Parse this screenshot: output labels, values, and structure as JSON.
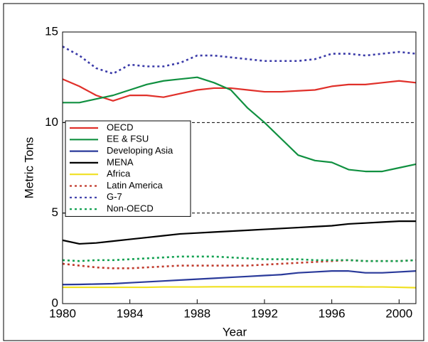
{
  "chart_data": {
    "type": "line",
    "x_label": "Year",
    "y_label": "Metric Tons",
    "x": [
      1980,
      1981,
      1982,
      1983,
      1984,
      1985,
      1986,
      1987,
      1988,
      1989,
      1990,
      1991,
      1992,
      1993,
      1994,
      1995,
      1996,
      1997,
      1998,
      1999,
      2000,
      2001
    ],
    "xlim": [
      1980,
      2001
    ],
    "xticks": [
      1980,
      1984,
      1988,
      1992,
      1996,
      2000
    ],
    "ylim": [
      0,
      15
    ],
    "yticks": [
      0,
      5,
      10,
      15
    ],
    "grid": true,
    "legend": "left",
    "series": [
      {
        "name": "OECD",
        "color": "#e0302a",
        "dashed": false,
        "values": [
          12.4,
          12.0,
          11.5,
          11.2,
          11.5,
          11.5,
          11.4,
          11.6,
          11.8,
          11.9,
          11.9,
          11.8,
          11.7,
          11.7,
          11.75,
          11.8,
          12.0,
          12.1,
          12.1,
          12.2,
          12.3,
          12.2
        ]
      },
      {
        "name": "EE & FSU",
        "color": "#109040",
        "dashed": false,
        "values": [
          11.1,
          11.1,
          11.3,
          11.5,
          11.8,
          12.1,
          12.3,
          12.4,
          12.5,
          12.2,
          11.8,
          10.8,
          10.0,
          9.1,
          8.2,
          7.9,
          7.8,
          7.4,
          7.3,
          7.3,
          7.5,
          7.7
        ]
      },
      {
        "name": "Developing Asia",
        "color": "#2a3a9a",
        "dashed": false,
        "values": [
          1.05,
          1.06,
          1.08,
          1.1,
          1.15,
          1.2,
          1.25,
          1.3,
          1.35,
          1.4,
          1.45,
          1.5,
          1.55,
          1.6,
          1.7,
          1.75,
          1.8,
          1.8,
          1.7,
          1.7,
          1.75,
          1.8
        ]
      },
      {
        "name": "MENA",
        "color": "#000000",
        "dashed": false,
        "values": [
          3.5,
          3.3,
          3.35,
          3.45,
          3.55,
          3.65,
          3.75,
          3.85,
          3.9,
          3.95,
          4.0,
          4.05,
          4.1,
          4.15,
          4.2,
          4.25,
          4.3,
          4.4,
          4.45,
          4.5,
          4.55,
          4.55
        ]
      },
      {
        "name": "Africa",
        "color": "#f0e020",
        "dashed": false,
        "values": [
          0.9,
          0.9,
          0.9,
          0.9,
          0.9,
          0.9,
          0.92,
          0.92,
          0.92,
          0.93,
          0.93,
          0.93,
          0.93,
          0.93,
          0.93,
          0.93,
          0.93,
          0.93,
          0.92,
          0.92,
          0.9,
          0.88
        ]
      },
      {
        "name": "Latin America",
        "color": "#c0392b",
        "dashed": true,
        "values": [
          2.2,
          2.1,
          2.0,
          1.95,
          1.95,
          2.0,
          2.05,
          2.1,
          2.1,
          2.1,
          2.1,
          2.1,
          2.15,
          2.2,
          2.25,
          2.3,
          2.35,
          2.4,
          2.35,
          2.35,
          2.35,
          2.4
        ]
      },
      {
        "name": "G-7",
        "color": "#3a3aa8",
        "dashed": true,
        "values": [
          14.2,
          13.7,
          13.0,
          12.7,
          13.2,
          13.1,
          13.1,
          13.3,
          13.7,
          13.7,
          13.6,
          13.5,
          13.4,
          13.4,
          13.4,
          13.5,
          13.8,
          13.8,
          13.7,
          13.8,
          13.9,
          13.8
        ]
      },
      {
        "name": "Non-OECD",
        "color": "#10a050",
        "dashed": true,
        "values": [
          2.4,
          2.35,
          2.4,
          2.4,
          2.45,
          2.5,
          2.55,
          2.6,
          2.6,
          2.6,
          2.55,
          2.5,
          2.45,
          2.45,
          2.45,
          2.4,
          2.4,
          2.4,
          2.35,
          2.35,
          2.35,
          2.4
        ]
      }
    ]
  }
}
